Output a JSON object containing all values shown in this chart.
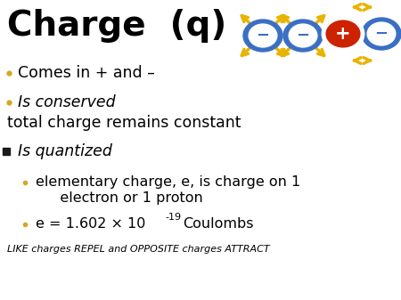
{
  "bg_color": "#ffffff",
  "title1": "Charge  (q)",
  "title_color": "#000000",
  "title_fontsize": 28,
  "bullet1": "Comes in + and –",
  "bullet2": "Is conserved",
  "sub2": "total charge remains constant",
  "bullet3": "Is quantized",
  "sub3a1": "elementary charge, e, is charge on 1",
  "sub3a2": "   electron or 1 proton",
  "sub3b_main": "e = 1.602 × 10",
  "sub3b_exp": "-19",
  "sub3b_end": " Coulombs",
  "footer": "LIKE charges REPEL and OPPOSITE charges ATTRACT",
  "bullet_color_small": "#DAA520",
  "bullet_color_large": "#1a1a1a",
  "text_color": "#000000",
  "neg_color": "#3a6fc4",
  "pos_color": "#cc2200",
  "arrow_color": "#e8b400",
  "neg_border": "#3a6fc4",
  "pos_border": "#cc2200"
}
